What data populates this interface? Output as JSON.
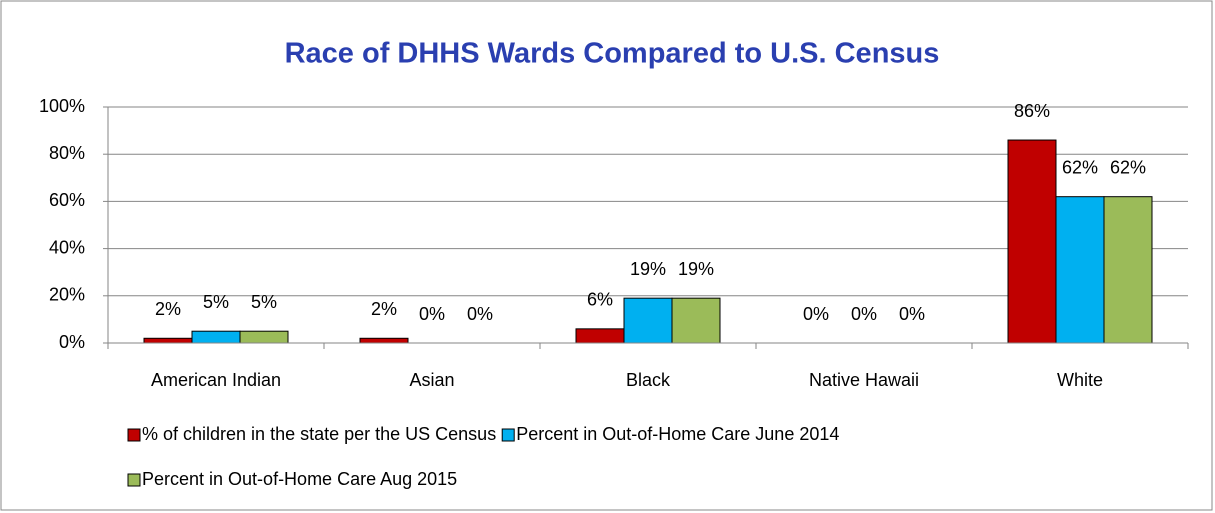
{
  "chart_data": {
    "type": "bar",
    "title": "Race of DHHS Wards Compared to U.S. Census",
    "categories": [
      "American Indian",
      "Asian",
      "Black",
      "Native Hawaii",
      "White"
    ],
    "series": [
      {
        "name": "% of children in the state per the US Census",
        "color": "#c00000",
        "values": [
          2,
          2,
          6,
          0,
          86
        ],
        "value_labels": [
          "2%",
          "2%",
          "6%",
          "0%",
          "86%"
        ]
      },
      {
        "name": "Percent in Out-of-Home Care June 2014",
        "color": "#00b0f0",
        "values": [
          5,
          0,
          19,
          0,
          62
        ],
        "value_labels": [
          "5%",
          "0%",
          "19%",
          "0%",
          "62%"
        ]
      },
      {
        "name": "Percent in Out-of-Home Care Aug 2015",
        "color": "#9bbb59",
        "values": [
          5,
          0,
          19,
          0,
          62
        ],
        "value_labels": [
          "5%",
          "0%",
          "19%",
          "0%",
          "62%"
        ]
      }
    ],
    "ylim": [
      0,
      100
    ],
    "yticks": [
      {
        "value": 0,
        "label": "0%"
      },
      {
        "value": 20,
        "label": "20%"
      },
      {
        "value": 40,
        "label": "40%"
      },
      {
        "value": 60,
        "label": "60%"
      },
      {
        "value": 80,
        "label": "80%"
      },
      {
        "value": 100,
        "label": "100%"
      }
    ],
    "grid": true,
    "legend": "bottom"
  }
}
